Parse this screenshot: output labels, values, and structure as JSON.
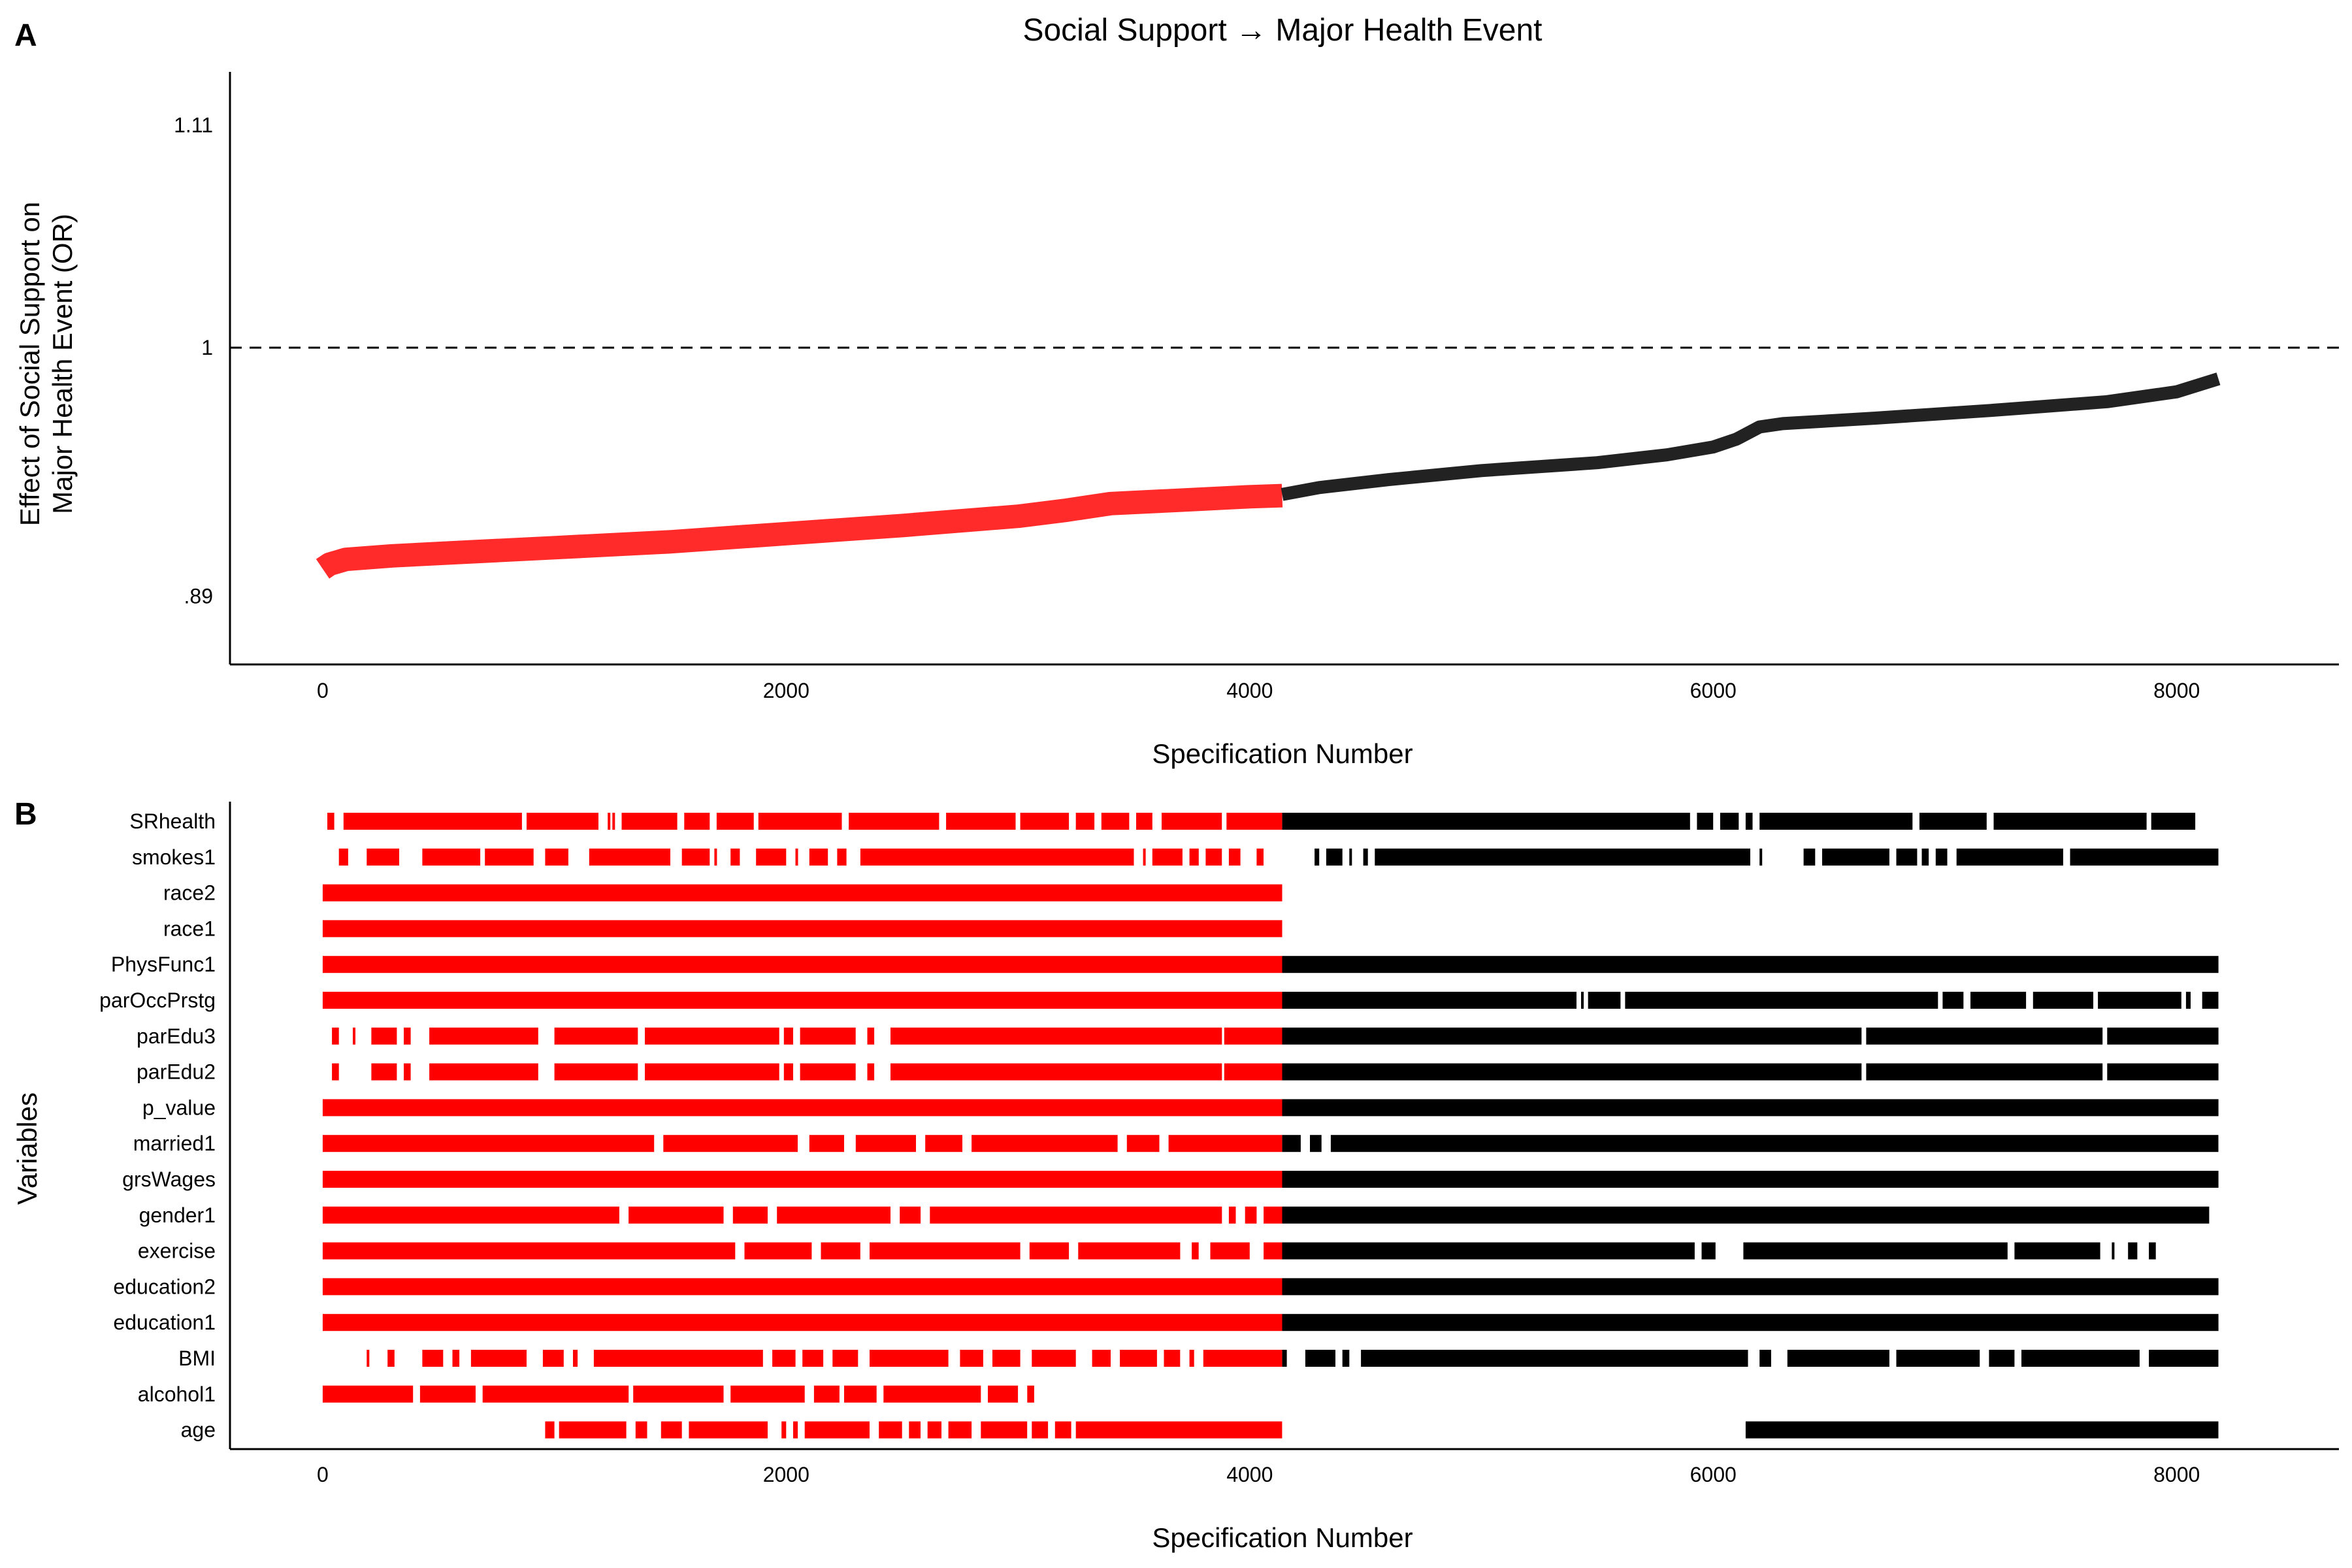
{
  "chart_data": [
    {
      "panel": "A",
      "type": "scatter",
      "title": "Social Support → Major Health Event",
      "xlabel": "Specification Number",
      "ylabel_lines": [
        "Effect of Social Support on",
        "Major Health Event (OR)"
      ],
      "x_ticks": [
        "0",
        "2000",
        "4000",
        "6000",
        "8000"
      ],
      "x_tick_values": [
        0,
        2000,
        4000,
        6000,
        8000
      ],
      "y_ticks": [
        ".89",
        "1",
        "1.11"
      ],
      "y_tick_values": [
        0.89,
        1.0,
        1.11
      ],
      "xlim": [
        -400,
        8700
      ],
      "ylim": [
        0.862,
        1.138
      ],
      "y_scale": "log",
      "reference_line": 1.0,
      "significance_cutoff_x": 4140,
      "colors": {
        "significant": "#ff2a2a",
        "nonsignificant": "#222222"
      },
      "series": [
        {
          "x": [
            0,
            30,
            100,
            300,
            600,
            1000,
            1500,
            2000,
            2500,
            3000,
            3200,
            3400,
            3700,
            4000,
            4140
          ],
          "y": [
            0.9015,
            0.9035,
            0.9055,
            0.907,
            0.9085,
            0.9105,
            0.913,
            0.9165,
            0.92,
            0.924,
            0.9265,
            0.9295,
            0.931,
            0.9325,
            0.933
          ]
        },
        {
          "x": [
            4140,
            4300,
            4600,
            5000,
            5500,
            5800,
            6000,
            6100,
            6200,
            6300,
            6700,
            7200,
            7700,
            8000,
            8180
          ],
          "y": [
            0.9335,
            0.9365,
            0.94,
            0.944,
            0.9475,
            0.951,
            0.9545,
            0.958,
            0.9635,
            0.965,
            0.9675,
            0.971,
            0.975,
            0.9795,
            0.9855
          ]
        }
      ]
    },
    {
      "panel": "B",
      "type": "heatmap",
      "xlabel": "Specification Number",
      "ylabel": "Variables",
      "x_ticks": [
        "0",
        "2000",
        "4000",
        "6000",
        "8000"
      ],
      "x_tick_values": [
        0,
        2000,
        4000,
        6000,
        8000
      ],
      "xlim": [
        -400,
        8700
      ],
      "colors": {
        "significant": "#ff0000",
        "nonsignificant": "#000000"
      },
      "variables": [
        {
          "name": "SRhealth",
          "segments": [
            [
              20,
              50
            ],
            [
              90,
              860
            ],
            [
              880,
              1190
            ],
            [
              1230,
              1220
            ],
            [
              1250,
              1250
            ],
            [
              1290,
              1530
            ],
            [
              1560,
              1670
            ],
            [
              1700,
              1860
            ],
            [
              1880,
              2240
            ],
            [
              2270,
              2660
            ],
            [
              2690,
              2990
            ],
            [
              3010,
              3220
            ],
            [
              3250,
              3330
            ],
            [
              3360,
              3480
            ],
            [
              3510,
              3580
            ],
            [
              3620,
              3880
            ],
            [
              3900,
              4140
            ],
            [
              4140,
              5900
            ],
            [
              5930,
              6000
            ],
            [
              6030,
              6110
            ],
            [
              6140,
              6170
            ],
            [
              6200,
              6860
            ],
            [
              6890,
              7180
            ],
            [
              7210,
              7870
            ],
            [
              7890,
              8080
            ]
          ]
        },
        {
          "name": "smokes1",
          "segments": [
            [
              70,
              110
            ],
            [
              190,
              330
            ],
            [
              430,
              680
            ],
            [
              700,
              910
            ],
            [
              960,
              1060
            ],
            [
              1150,
              1500
            ],
            [
              1550,
              1670
            ],
            [
              1690,
              1690
            ],
            [
              1760,
              1800
            ],
            [
              1870,
              2000
            ],
            [
              2040,
              2050
            ],
            [
              2100,
              2180
            ],
            [
              2220,
              2260
            ],
            [
              2320,
              3500
            ],
            [
              3540,
              3550
            ],
            [
              3580,
              3710
            ],
            [
              3740,
              3780
            ],
            [
              3810,
              3880
            ],
            [
              3910,
              3960
            ],
            [
              4030,
              4060
            ],
            [
              4280,
              4300
            ],
            [
              4330,
              4400
            ],
            [
              4430,
              4440
            ],
            [
              4490,
              4510
            ],
            [
              4540,
              6160
            ],
            [
              6200,
              6210
            ],
            [
              6390,
              6440
            ],
            [
              6470,
              6760
            ],
            [
              6790,
              6880
            ],
            [
              6900,
              6930
            ],
            [
              6960,
              7010
            ],
            [
              7050,
              7510
            ],
            [
              7540,
              8180
            ]
          ]
        },
        {
          "name": "race2",
          "segments": [
            [
              0,
              4140
            ]
          ]
        },
        {
          "name": "race1",
          "segments": [
            [
              0,
              4140
            ]
          ]
        },
        {
          "name": "PhysFunc1",
          "segments": [
            [
              0,
              4140
            ],
            [
              4140,
              8180
            ]
          ]
        },
        {
          "name": "parOccPrstg",
          "segments": [
            [
              0,
              4140
            ],
            [
              4140,
              5410
            ],
            [
              5430,
              5440
            ],
            [
              5460,
              5600
            ],
            [
              5620,
              6970
            ],
            [
              6990,
              7080
            ],
            [
              7110,
              7350
            ],
            [
              7380,
              7640
            ],
            [
              7660,
              8020
            ],
            [
              8040,
              8060
            ],
            [
              8110,
              8180
            ]
          ]
        },
        {
          "name": "parEdu3",
          "segments": [
            [
              40,
              70
            ],
            [
              130,
              140
            ],
            [
              210,
              210
            ],
            [
              220,
              320
            ],
            [
              350,
              380
            ],
            [
              460,
              930
            ],
            [
              1000,
              1360
            ],
            [
              1390,
              1970
            ],
            [
              1990,
              2030
            ],
            [
              2060,
              2300
            ],
            [
              2350,
              2380
            ],
            [
              2450,
              3880
            ],
            [
              3890,
              4140
            ],
            [
              4140,
              6640
            ],
            [
              6660,
              7680
            ],
            [
              7700,
              8180
            ]
          ]
        },
        {
          "name": "parEdu2",
          "segments": [
            [
              40,
              70
            ],
            [
              210,
              210
            ],
            [
              220,
              320
            ],
            [
              350,
              380
            ],
            [
              460,
              930
            ],
            [
              1000,
              1360
            ],
            [
              1390,
              1970
            ],
            [
              1990,
              2030
            ],
            [
              2060,
              2300
            ],
            [
              2350,
              2380
            ],
            [
              2450,
              3880
            ],
            [
              3890,
              4140
            ],
            [
              4140,
              6640
            ],
            [
              6660,
              7680
            ],
            [
              7700,
              8180
            ]
          ]
        },
        {
          "name": "p_value",
          "segments": [
            [
              0,
              4140
            ],
            [
              4140,
              8180
            ]
          ]
        },
        {
          "name": "married1",
          "segments": [
            [
              0,
              1430
            ],
            [
              1470,
              2050
            ],
            [
              2100,
              2250
            ],
            [
              2300,
              2560
            ],
            [
              2600,
              2760
            ],
            [
              2800,
              3430
            ],
            [
              3470,
              3610
            ],
            [
              3650,
              4140
            ],
            [
              4140,
              4220
            ],
            [
              4260,
              4310
            ],
            [
              4350,
              8180
            ]
          ]
        },
        {
          "name": "grsWages",
          "segments": [
            [
              0,
              4140
            ],
            [
              4140,
              8180
            ]
          ]
        },
        {
          "name": "gender1",
          "segments": [
            [
              0,
              1280
            ],
            [
              1320,
              1730
            ],
            [
              1770,
              1920
            ],
            [
              1960,
              2450
            ],
            [
              2490,
              2580
            ],
            [
              2620,
              3880
            ],
            [
              3910,
              3940
            ],
            [
              3980,
              4030
            ],
            [
              4060,
              4140
            ],
            [
              4140,
              8140
            ]
          ]
        },
        {
          "name": "exercise",
          "segments": [
            [
              0,
              1780
            ],
            [
              1820,
              2110
            ],
            [
              2150,
              2320
            ],
            [
              2360,
              3010
            ],
            [
              3050,
              3220
            ],
            [
              3260,
              3700
            ],
            [
              3750,
              3780
            ],
            [
              3830,
              4000
            ],
            [
              4060,
              4140
            ],
            [
              4140,
              5920
            ],
            [
              5950,
              6010
            ],
            [
              6130,
              7270
            ],
            [
              7300,
              7670
            ],
            [
              7720,
              7730
            ],
            [
              7790,
              7830
            ],
            [
              7880,
              7910
            ]
          ]
        },
        {
          "name": "education2",
          "segments": [
            [
              0,
              4140
            ],
            [
              4140,
              8180
            ]
          ]
        },
        {
          "name": "education1",
          "segments": [
            [
              0,
              4140
            ],
            [
              4140,
              8180
            ]
          ]
        },
        {
          "name": "BMI",
          "segments": [
            [
              190,
              200
            ],
            [
              280,
              310
            ],
            [
              430,
              520
            ],
            [
              560,
              590
            ],
            [
              640,
              880
            ],
            [
              950,
              1040
            ],
            [
              1080,
              1100
            ],
            [
              1170,
              1900
            ],
            [
              1940,
              2040
            ],
            [
              2070,
              2160
            ],
            [
              2200,
              2310
            ],
            [
              2360,
              2700
            ],
            [
              2750,
              2850
            ],
            [
              2890,
              3010
            ],
            [
              3060,
              3250
            ],
            [
              3320,
              3400
            ],
            [
              3440,
              3600
            ],
            [
              3630,
              3700
            ],
            [
              3740,
              3760
            ],
            [
              3800,
              4140
            ],
            [
              4140,
              4160
            ],
            [
              4240,
              4370
            ],
            [
              4400,
              4430
            ],
            [
              4480,
              6150
            ],
            [
              6200,
              6250
            ],
            [
              6320,
              6760
            ],
            [
              6790,
              7150
            ],
            [
              7190,
              7300
            ],
            [
              7330,
              7840
            ],
            [
              7880,
              8180
            ]
          ]
        },
        {
          "name": "alcohol1",
          "segments": [
            [
              0,
              390
            ],
            [
              420,
              660
            ],
            [
              690,
              1320
            ],
            [
              1340,
              1730
            ],
            [
              1760,
              2080
            ],
            [
              2120,
              2230
            ],
            [
              2250,
              2390
            ],
            [
              2420,
              2840
            ],
            [
              2870,
              3000
            ],
            [
              3040,
              3070
            ]
          ]
        },
        {
          "name": "age",
          "segments": [
            [
              960,
              1000
            ],
            [
              1020,
              1310
            ],
            [
              1350,
              1400
            ],
            [
              1460,
              1550
            ],
            [
              1580,
              1920
            ],
            [
              1980,
              2000
            ],
            [
              2030,
              2050
            ],
            [
              2080,
              2360
            ],
            [
              2400,
              2500
            ],
            [
              2530,
              2580
            ],
            [
              2610,
              2670
            ],
            [
              2700,
              2800
            ],
            [
              2840,
              3040
            ],
            [
              3060,
              3130
            ],
            [
              3160,
              3230
            ],
            [
              3250,
              4140
            ],
            [
              6140,
              8180
            ]
          ]
        }
      ]
    }
  ]
}
